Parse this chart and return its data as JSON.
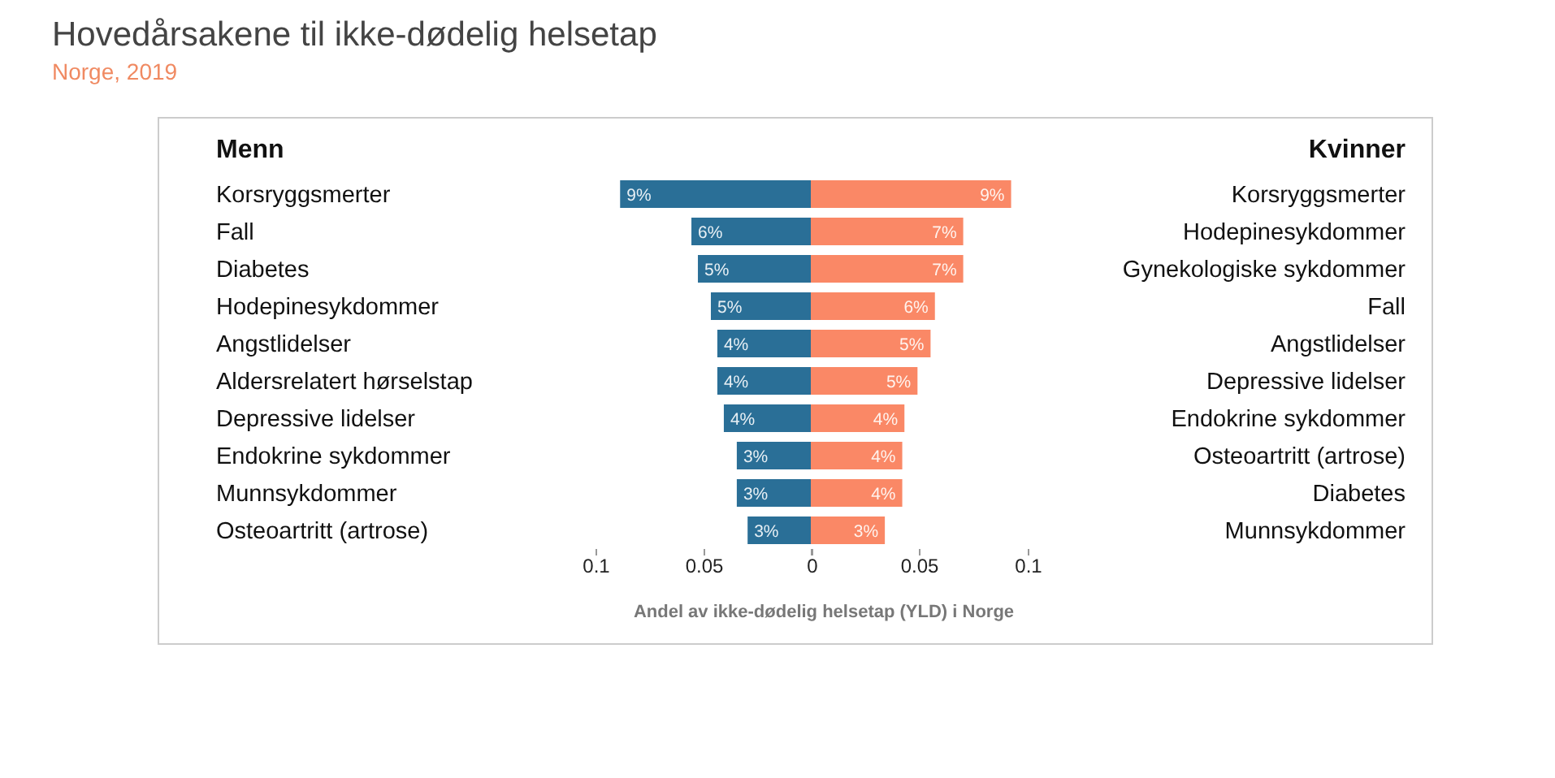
{
  "chart_data": [
    {
      "type": "other",
      "title": "Hovedårsakene til ikke-dødelig helsetap",
      "subtitle": "Norge, 2019"
    },
    {
      "type": "bar",
      "orientation": "horizontal",
      "title": "Menn",
      "xlabel": "Andel av ikke-dødelig helsetap (YLD) i Norge",
      "categories": [
        "Korsryggsmerter",
        "Fall",
        "Diabetes",
        "Hodepinesykdommer",
        "Angstlidelser",
        "Aldersrelatert hørselstap",
        "Depressive lidelser",
        "Endokrine sykdommer",
        "Munnsykdommer",
        "Osteoartritt (artrose)"
      ],
      "values": [
        0.089,
        0.056,
        0.053,
        0.047,
        0.044,
        0.044,
        0.041,
        0.035,
        0.035,
        0.03
      ],
      "value_labels": [
        "9%",
        "6%",
        "5%",
        "5%",
        "4%",
        "4%",
        "4%",
        "3%",
        "3%",
        "3%"
      ],
      "color": "#2a6f97",
      "xlim": [
        0.1,
        0
      ],
      "xticks": [
        0.1,
        0.05,
        0
      ],
      "grid": false,
      "legend": false
    },
    {
      "type": "bar",
      "orientation": "horizontal",
      "title": "Kvinner",
      "categories": [
        "Korsryggsmerter",
        "Hodepinesykdommer",
        "Gynekologiske sykdommer",
        "Fall",
        "Angstlidelser",
        "Depressive lidelser",
        "Endokrine sykdommer",
        "Osteoartritt (artrose)",
        "Diabetes",
        "Munnsykdommer"
      ],
      "values": [
        0.092,
        0.07,
        0.07,
        0.057,
        0.055,
        0.049,
        0.043,
        0.042,
        0.042,
        0.034
      ],
      "value_labels": [
        "9%",
        "7%",
        "7%",
        "6%",
        "5%",
        "5%",
        "4%",
        "4%",
        "4%",
        "3%"
      ],
      "color": "#fa8866",
      "xlim": [
        0,
        0.1
      ],
      "xticks": [
        {
          "value": 0,
          "label": null
        },
        0.05,
        0.1
      ],
      "grid": false,
      "legend": false
    }
  ]
}
